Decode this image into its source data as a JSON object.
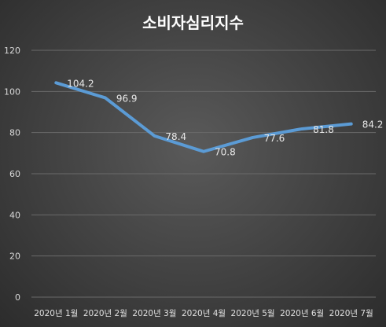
{
  "chart_data": {
    "type": "line",
    "title": "소비자심리지수",
    "xlabel": "",
    "ylabel": "",
    "categories": [
      "2020년 1월",
      "2020년 2월",
      "2020년 3월",
      "2020년 4월",
      "2020년 5월",
      "2020년 6월",
      "2020년 7월"
    ],
    "values": [
      104.2,
      96.9,
      78.4,
      70.8,
      77.6,
      81.8,
      84.2
    ],
    "data_labels": [
      "104.2",
      "96.9",
      "78.4",
      "70.8",
      "77.6",
      "81.8",
      "84.2"
    ],
    "ylim": [
      0,
      120
    ],
    "yticks": [
      0,
      20,
      40,
      60,
      80,
      100,
      120
    ],
    "ytick_labels": [
      "0",
      "20",
      "40",
      "60",
      "80",
      "100",
      "120"
    ],
    "grid": true,
    "legend": "none",
    "line_color": "#5b9bd5",
    "background_color": "#404040"
  }
}
